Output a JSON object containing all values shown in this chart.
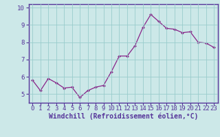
{
  "x": [
    0,
    1,
    2,
    3,
    4,
    5,
    6,
    7,
    8,
    9,
    10,
    11,
    12,
    13,
    14,
    15,
    16,
    17,
    18,
    19,
    20,
    21,
    22,
    23
  ],
  "y": [
    5.8,
    5.2,
    5.9,
    5.65,
    5.35,
    5.4,
    4.8,
    5.2,
    5.4,
    5.5,
    6.3,
    7.2,
    7.2,
    7.8,
    8.85,
    9.6,
    9.2,
    8.8,
    8.75,
    8.55,
    8.6,
    8.0,
    7.95,
    7.7
  ],
  "line_color": "#882288",
  "marker": "D",
  "marker_size": 2.0,
  "linewidth": 0.9,
  "xlabel": "Windchill (Refroidissement éolien,°C)",
  "xlim": [
    -0.5,
    23.5
  ],
  "ylim": [
    4.5,
    10.2
  ],
  "yticks": [
    5,
    6,
    7,
    8,
    9,
    10
  ],
  "xticks": [
    0,
    1,
    2,
    3,
    4,
    5,
    6,
    7,
    8,
    9,
    10,
    11,
    12,
    13,
    14,
    15,
    16,
    17,
    18,
    19,
    20,
    21,
    22,
    23
  ],
  "bg_color": "#cce8e8",
  "grid_color": "#99cccc",
  "axis_color": "#553399",
  "tick_label_fontsize": 6.5,
  "xlabel_fontsize": 7.0
}
